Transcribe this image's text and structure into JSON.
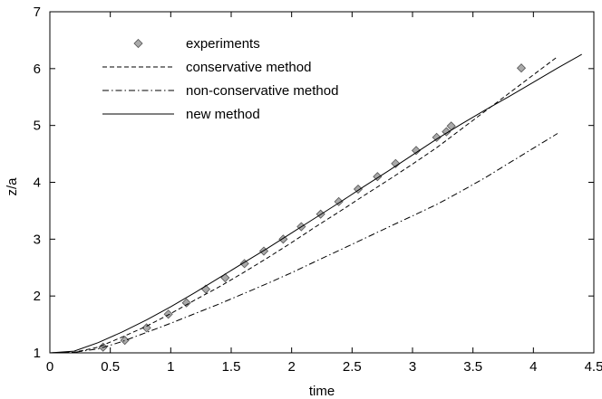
{
  "chart_data": {
    "type": "line",
    "xlabel": "time",
    "ylabel": "z/a",
    "xlim": [
      0,
      4.5
    ],
    "ylim": [
      1,
      7
    ],
    "xticks": [
      "0",
      "0.5",
      "1",
      "1.5",
      "2",
      "2.5",
      "3",
      "3.5",
      "4",
      "4.5"
    ],
    "yticks": [
      "1",
      "2",
      "3",
      "4",
      "5",
      "6",
      "7"
    ],
    "grid": false,
    "legend_position": "top-left",
    "series": [
      {
        "name": "experiments",
        "style": "markers",
        "marker": "diamond",
        "color": "#aaaaaa",
        "x": [
          0.44,
          0.62,
          0.8,
          0.98,
          1.13,
          1.29,
          1.45,
          1.61,
          1.77,
          1.93,
          2.08,
          2.24,
          2.39,
          2.55,
          2.71,
          2.86,
          3.03,
          3.2,
          3.28,
          3.32,
          3.9
        ],
        "y": [
          1.1,
          1.22,
          1.44,
          1.68,
          1.88,
          2.12,
          2.32,
          2.57,
          2.79,
          3.0,
          3.22,
          3.44,
          3.66,
          3.88,
          4.1,
          4.33,
          4.56,
          4.79,
          4.89,
          4.99,
          6.01
        ]
      },
      {
        "name": "conservative method",
        "style": "dashed",
        "color": "#000000",
        "x": [
          0,
          0.2,
          0.4,
          0.6,
          0.8,
          1.0,
          1.2,
          1.4,
          1.6,
          1.8,
          2.0,
          2.2,
          2.4,
          2.6,
          2.8,
          3.0,
          3.2,
          3.4,
          3.6,
          3.8,
          4.0,
          4.2
        ],
        "y": [
          1.0,
          1.01,
          1.1,
          1.28,
          1.47,
          1.69,
          1.93,
          2.16,
          2.41,
          2.67,
          2.94,
          3.22,
          3.49,
          3.77,
          4.04,
          4.32,
          4.61,
          4.93,
          5.25,
          5.57,
          5.89,
          6.21
        ]
      },
      {
        "name": "non-conservative method",
        "style": "dashdot",
        "color": "#000000",
        "x": [
          0,
          0.2,
          0.4,
          0.6,
          0.8,
          1.0,
          1.2,
          1.4,
          1.6,
          1.8,
          2.0,
          2.2,
          2.4,
          2.6,
          2.8,
          3.0,
          3.2,
          3.4,
          3.6,
          3.8,
          4.0,
          4.2
        ],
        "y": [
          1.0,
          1.01,
          1.07,
          1.2,
          1.36,
          1.52,
          1.69,
          1.86,
          2.04,
          2.22,
          2.41,
          2.61,
          2.81,
          3.01,
          3.21,
          3.41,
          3.61,
          3.84,
          4.08,
          4.34,
          4.6,
          4.86
        ]
      },
      {
        "name": "new method",
        "style": "solid",
        "color": "#000000",
        "x": [
          0,
          0.2,
          0.4,
          0.6,
          0.8,
          1.0,
          1.2,
          1.4,
          1.6,
          1.8,
          2.0,
          2.2,
          2.4,
          2.6,
          2.8,
          3.0,
          3.2,
          3.4,
          3.6,
          3.8,
          4.0,
          4.2,
          4.4
        ],
        "y": [
          1.0,
          1.03,
          1.18,
          1.37,
          1.58,
          1.81,
          2.06,
          2.32,
          2.58,
          2.84,
          3.11,
          3.38,
          3.65,
          3.93,
          4.2,
          4.48,
          4.76,
          5.02,
          5.27,
          5.51,
          5.76,
          6.01,
          6.25
        ]
      }
    ]
  }
}
